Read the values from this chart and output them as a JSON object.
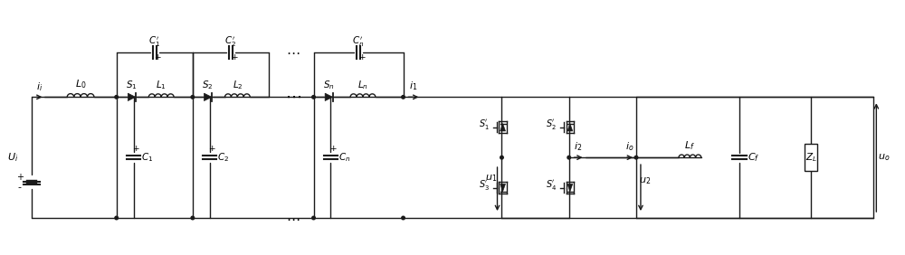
{
  "figsize": [
    10.0,
    2.82
  ],
  "dpi": 100,
  "bg_color": "#ffffff",
  "lc": "#1a1a1a",
  "lw": 1.0,
  "xlim": [
    0,
    100
  ],
  "ylim": [
    0,
    28.2
  ],
  "top_y": 17.5,
  "bot_y": 4.0,
  "bridge_y": 22.5
}
